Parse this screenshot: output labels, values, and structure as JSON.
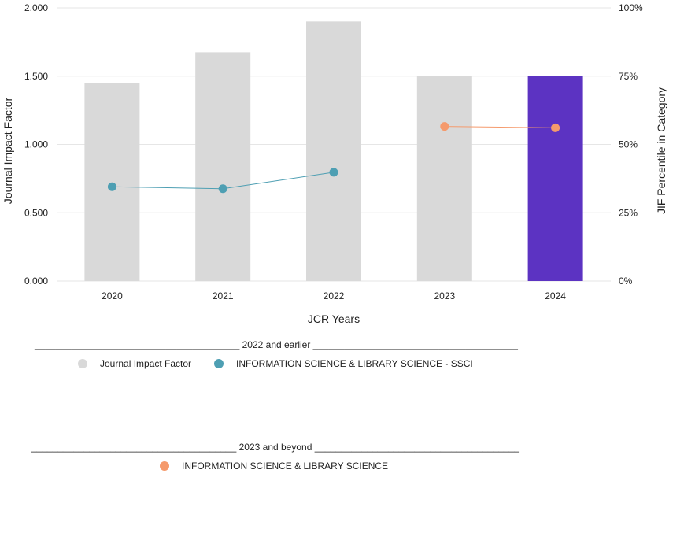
{
  "chart_data": {
    "type": "bar",
    "xlabel": "JCR Years",
    "ylabel": "Journal Impact Factor",
    "y2label": "JIF Percentile in Category",
    "categories": [
      "2020",
      "2021",
      "2022",
      "2023",
      "2024"
    ],
    "ylim": [
      0,
      2.0
    ],
    "y_ticks": [
      "0.000",
      "0.500",
      "1.000",
      "1.500",
      "2.000"
    ],
    "y2lim": [
      0,
      100
    ],
    "y2_ticks": [
      "0%",
      "25%",
      "50%",
      "75%",
      "100%"
    ],
    "bars": {
      "name": "Journal Impact Factor",
      "values": [
        1.45,
        1.675,
        1.9,
        1.5,
        1.5
      ],
      "color": "#d9d9d9",
      "highlight_index": 4,
      "highlight_color": "#5c33c2"
    },
    "percentile_series": [
      {
        "name": "INFORMATION SCIENCE & LIBRARY SCIENCE - SSCI",
        "color": "#4e9fb3",
        "x": [
          "2020",
          "2021",
          "2022"
        ],
        "values": [
          34.5,
          33.8,
          39.8
        ]
      },
      {
        "name": "INFORMATION SCIENCE & LIBRARY SCIENCE",
        "color": "#f59a6c",
        "x": [
          "2023",
          "2024"
        ],
        "values": [
          56.6,
          56.1
        ]
      }
    ],
    "grid": true
  },
  "legend": {
    "group1_header": "_______________________________________ 2022 and earlier _______________________________________",
    "group1_items": [
      {
        "label": "Journal Impact Factor",
        "color": "#d9d9d9"
      },
      {
        "label": "INFORMATION SCIENCE & LIBRARY SCIENCE - SSCI",
        "color": "#4e9fb3"
      }
    ],
    "group2_header": "_______________________________________ 2023 and beyond _______________________________________",
    "group2_items": [
      {
        "label": "INFORMATION SCIENCE & LIBRARY SCIENCE",
        "color": "#f59a6c"
      }
    ]
  }
}
